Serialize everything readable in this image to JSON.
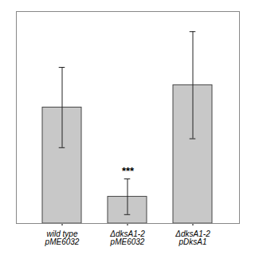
{
  "chart_data": {
    "type": "bar",
    "categories": [
      "wild type\npME6032",
      "ΔdksA1-2\npME6032",
      "ΔdksA1-2\npDksA1"
    ],
    "values": [
      52,
      12,
      62
    ],
    "errors": [
      18,
      8,
      24
    ],
    "color": "#c8c8c8",
    "ylim": [
      0,
      95
    ],
    "tick_labels": "x",
    "annotations": [
      {
        "text": "***",
        "category": "ΔdksA1-2\npME6032"
      }
    ]
  }
}
